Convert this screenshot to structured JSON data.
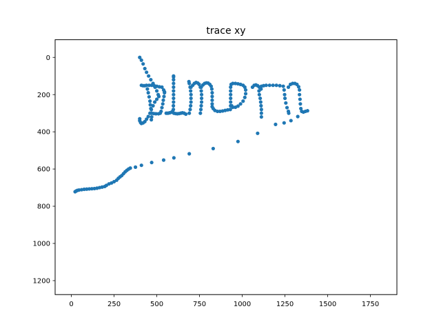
{
  "chart_data": {
    "type": "scatter",
    "title": "trace xy",
    "xlabel": "",
    "ylabel": "",
    "xlim": [
      -95,
      1905
    ],
    "ylim": [
      1275,
      -95
    ],
    "y_inverted": true,
    "grid": false,
    "xticks": [
      0,
      250,
      500,
      750,
      1000,
      1250,
      1500,
      1750
    ],
    "xtick_labels": [
      "0",
      "250",
      "500",
      "750",
      "1000",
      "1250",
      "1500",
      "1750"
    ],
    "yticks": [
      0,
      200,
      400,
      600,
      800,
      1000,
      1200
    ],
    "ytick_labels": [
      "0",
      "200",
      "400",
      "600",
      "800",
      "1000",
      "1200"
    ],
    "marker_color": "#1f77b4",
    "series": [
      {
        "points": [
          [
            400,
            0
          ],
          [
            410,
            15
          ],
          [
            420,
            35
          ],
          [
            430,
            60
          ],
          [
            440,
            80
          ],
          [
            452,
            100
          ],
          [
            465,
            120
          ],
          [
            478,
            140
          ],
          [
            490,
            160
          ],
          [
            500,
            180
          ],
          [
            508,
            200
          ],
          [
            512,
            210
          ],
          [
            500,
            225
          ],
          [
            488,
            240
          ],
          [
            478,
            260
          ],
          [
            468,
            280
          ],
          [
            460,
            300
          ],
          [
            450,
            318
          ],
          [
            440,
            332
          ],
          [
            430,
            345
          ],
          [
            420,
            352
          ],
          [
            410,
            355
          ],
          [
            405,
            350
          ],
          [
            400,
            340
          ],
          [
            400,
            330
          ],
          [
            410,
            150
          ],
          [
            420,
            152
          ],
          [
            430,
            152
          ],
          [
            440,
            150
          ],
          [
            455,
            150
          ],
          [
            470,
            150
          ],
          [
            485,
            152
          ],
          [
            500,
            155
          ],
          [
            515,
            158
          ],
          [
            530,
            160
          ],
          [
            445,
            170
          ],
          [
            450,
            190
          ],
          [
            455,
            212
          ],
          [
            460,
            235
          ],
          [
            462,
            255
          ],
          [
            465,
            275
          ],
          [
            468,
            300
          ],
          [
            470,
            320
          ],
          [
            468,
            335
          ],
          [
            470,
            300
          ],
          [
            482,
            302
          ],
          [
            495,
            303
          ],
          [
            510,
            303
          ],
          [
            520,
            300
          ],
          [
            525,
            290
          ],
          [
            530,
            270
          ],
          [
            535,
            250
          ],
          [
            538,
            230
          ],
          [
            542,
            210
          ],
          [
            545,
            190
          ],
          [
            540,
            175
          ],
          [
            545,
            185
          ],
          [
            555,
            300
          ],
          [
            565,
            300
          ],
          [
            575,
            298
          ],
          [
            585,
            295
          ],
          [
            592,
            290
          ],
          [
            597,
            280
          ],
          [
            597,
            260
          ],
          [
            598,
            240
          ],
          [
            598,
            220
          ],
          [
            598,
            200
          ],
          [
            598,
            180
          ],
          [
            598,
            160
          ],
          [
            598,
            140
          ],
          [
            598,
            120
          ],
          [
            598,
            105
          ],
          [
            598,
            100
          ],
          [
            600,
            300
          ],
          [
            610,
            302
          ],
          [
            620,
            303
          ],
          [
            630,
            302
          ],
          [
            640,
            300
          ],
          [
            650,
            298
          ],
          [
            660,
            300
          ],
          [
            670,
            305
          ],
          [
            690,
            300
          ],
          [
            695,
            280
          ],
          [
            698,
            260
          ],
          [
            700,
            240
          ],
          [
            700,
            220
          ],
          [
            700,
            200
          ],
          [
            698,
            180
          ],
          [
            695,
            160
          ],
          [
            690,
            140
          ],
          [
            688,
            130
          ],
          [
            700,
            160
          ],
          [
            710,
            150
          ],
          [
            720,
            140
          ],
          [
            730,
            135
          ],
          [
            740,
            138
          ],
          [
            748,
            145
          ],
          [
            755,
            160
          ],
          [
            760,
            180
          ],
          [
            762,
            200
          ],
          [
            762,
            220
          ],
          [
            762,
            240
          ],
          [
            760,
            260
          ],
          [
            758,
            280
          ],
          [
            755,
            300
          ],
          [
            760,
            160
          ],
          [
            770,
            148
          ],
          [
            780,
            140
          ],
          [
            790,
            137
          ],
          [
            800,
            138
          ],
          [
            810,
            145
          ],
          [
            818,
            155
          ],
          [
            822,
            170
          ],
          [
            824,
            190
          ],
          [
            824,
            210
          ],
          [
            824,
            230
          ],
          [
            824,
            250
          ],
          [
            824,
            265
          ],
          [
            830,
            275
          ],
          [
            840,
            285
          ],
          [
            855,
            290
          ],
          [
            870,
            290
          ],
          [
            885,
            288
          ],
          [
            900,
            285
          ],
          [
            915,
            282
          ],
          [
            930,
            280
          ],
          [
            932,
            260
          ],
          [
            932,
            240
          ],
          [
            932,
            220
          ],
          [
            932,
            200
          ],
          [
            932,
            180
          ],
          [
            932,
            160
          ],
          [
            935,
            145
          ],
          [
            945,
            140
          ],
          [
            960,
            140
          ],
          [
            975,
            142
          ],
          [
            990,
            145
          ],
          [
            1005,
            150
          ],
          [
            1015,
            160
          ],
          [
            1020,
            175
          ],
          [
            1020,
            195
          ],
          [
            1015,
            215
          ],
          [
            1005,
            235
          ],
          [
            990,
            250
          ],
          [
            975,
            262
          ],
          [
            960,
            268
          ],
          [
            945,
            268
          ],
          [
            938,
            260
          ],
          [
            1060,
            160
          ],
          [
            1070,
            150
          ],
          [
            1080,
            148
          ],
          [
            1090,
            152
          ],
          [
            1100,
            160
          ],
          [
            1110,
            170
          ],
          [
            1098,
            180
          ],
          [
            1100,
            200
          ],
          [
            1105,
            220
          ],
          [
            1108,
            240
          ],
          [
            1110,
            260
          ],
          [
            1112,
            280
          ],
          [
            1112,
            300
          ],
          [
            1112,
            320
          ],
          [
            1112,
            155
          ],
          [
            1125,
            152
          ],
          [
            1140,
            150
          ],
          [
            1160,
            150
          ],
          [
            1180,
            150
          ],
          [
            1200,
            150
          ],
          [
            1220,
            152
          ],
          [
            1240,
            155
          ],
          [
            1245,
            175
          ],
          [
            1248,
            200
          ],
          [
            1250,
            220
          ],
          [
            1255,
            245
          ],
          [
            1262,
            270
          ],
          [
            1270,
            290
          ],
          [
            1272,
            300
          ],
          [
            1270,
            160
          ],
          [
            1282,
            145
          ],
          [
            1295,
            140
          ],
          [
            1308,
            140
          ],
          [
            1320,
            145
          ],
          [
            1330,
            158
          ],
          [
            1335,
            175
          ],
          [
            1335,
            200
          ],
          [
            1338,
            225
          ],
          [
            1340,
            250
          ],
          [
            1343,
            275
          ],
          [
            1348,
            290
          ],
          [
            1358,
            294
          ],
          [
            1370,
            290
          ],
          [
            1382,
            287
          ],
          [
            1325,
            318
          ],
          [
            1285,
            340
          ],
          [
            1245,
            352
          ],
          [
            1195,
            360
          ],
          [
            1090,
            408
          ],
          [
            975,
            452
          ],
          [
            830,
            490
          ],
          [
            690,
            518
          ],
          [
            600,
            540
          ],
          [
            540,
            552
          ],
          [
            470,
            565
          ],
          [
            410,
            580
          ],
          [
            375,
            590
          ],
          [
            345,
            595
          ],
          [
            335,
            600
          ],
          [
            325,
            607
          ],
          [
            315,
            615
          ],
          [
            305,
            625
          ],
          [
            295,
            635
          ],
          [
            285,
            642
          ],
          [
            275,
            650
          ],
          [
            265,
            660
          ],
          [
            250,
            668
          ],
          [
            235,
            675
          ],
          [
            220,
            680
          ],
          [
            205,
            688
          ],
          [
            195,
            694
          ],
          [
            180,
            697
          ],
          [
            165,
            700
          ],
          [
            150,
            703
          ],
          [
            135,
            705
          ],
          [
            120,
            706
          ],
          [
            105,
            707
          ],
          [
            90,
            708
          ],
          [
            75,
            709
          ],
          [
            60,
            711
          ],
          [
            45,
            713
          ],
          [
            35,
            715
          ],
          [
            28,
            718
          ],
          [
            22,
            722
          ]
        ]
      }
    ]
  }
}
